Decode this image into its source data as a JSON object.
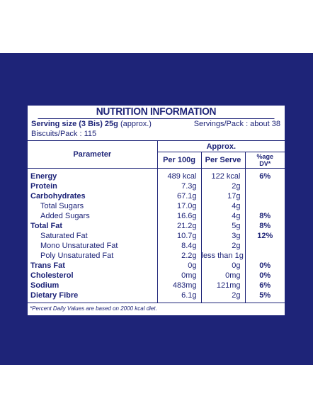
{
  "title": "NUTRITION INFORMATION",
  "serving": {
    "size_label": "Serving size (3 Bis) 25g",
    "size_note": "(approx.)",
    "servings_per_pack": "Servings/Pack : about 38",
    "biscuits_per_pack": "Biscuits/Pack : 115"
  },
  "table": {
    "approx_label": "Approx.",
    "headers": {
      "parameter": "Parameter",
      "per100g": "Per 100g",
      "perServe": "Per Serve",
      "dv_line1": "%age",
      "dv_line2": "DV*"
    },
    "rows": [
      {
        "name": "Energy",
        "per100g": "489 kcal",
        "perServe": "122 kcal",
        "dv": "6%",
        "bold": true,
        "indent": false
      },
      {
        "name": "Protein",
        "per100g": "7.3g",
        "perServe": "2g",
        "dv": "",
        "bold": true,
        "indent": false
      },
      {
        "name": "Carbohydrates",
        "per100g": "67.1g",
        "perServe": "17g",
        "dv": "",
        "bold": true,
        "indent": false
      },
      {
        "name": "Total Sugars",
        "per100g": "17.0g",
        "perServe": "4g",
        "dv": "",
        "bold": false,
        "indent": true
      },
      {
        "name": "Added Sugars",
        "per100g": "16.6g",
        "perServe": "4g",
        "dv": "8%",
        "bold": false,
        "indent": true
      },
      {
        "name": "Total Fat",
        "per100g": "21.2g",
        "perServe": "5g",
        "dv": "8%",
        "bold": true,
        "indent": false
      },
      {
        "name": "Saturated Fat",
        "per100g": "10.7g",
        "perServe": "3g",
        "dv": "12%",
        "bold": false,
        "indent": true
      },
      {
        "name": "Mono Unsaturated Fat",
        "per100g": "8.4g",
        "perServe": "2g",
        "dv": "",
        "bold": false,
        "indent": true
      },
      {
        "name": "Poly Unsaturated Fat",
        "per100g": "2.2g",
        "perServe": "less than 1g",
        "dv": "",
        "bold": false,
        "indent": true
      },
      {
        "name": "Trans Fat",
        "per100g": "0g",
        "perServe": "0g",
        "dv": "0%",
        "bold": true,
        "indent": false
      },
      {
        "name": "Cholesterol",
        "per100g": "0mg",
        "perServe": "0mg",
        "dv": "0%",
        "bold": true,
        "indent": false
      },
      {
        "name": "Sodium",
        "per100g": "483mg",
        "perServe": "121mg",
        "dv": "6%",
        "bold": true,
        "indent": false
      },
      {
        "name": "Dietary Fibre",
        "per100g": "6.1g",
        "perServe": "2g",
        "dv": "5%",
        "bold": true,
        "indent": false
      }
    ]
  },
  "footnote": "*Percent Daily Values are based on 2000 kcal diet.",
  "colors": {
    "background_band": "#1e2478",
    "text": "#1e2478",
    "panel": "#ffffff"
  }
}
